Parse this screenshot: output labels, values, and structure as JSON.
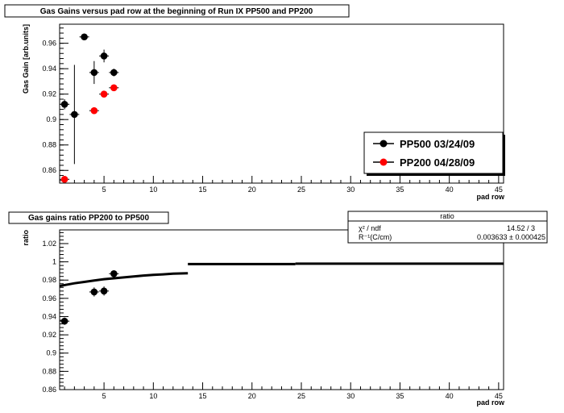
{
  "chart_data": [
    {
      "type": "scatter",
      "title": "Gas Gains versus pad row at the beginning of Run IX PP500 and PP200",
      "xlabel": "pad row",
      "ylabel": "Gas Gain [arb.units]",
      "xlim": [
        0.5,
        45.5
      ],
      "ylim": [
        0.85,
        0.975
      ],
      "xticks": [
        5,
        10,
        15,
        20,
        25,
        30,
        35,
        40,
        45
      ],
      "yticks": [
        0.86,
        0.88,
        0.9,
        0.92,
        0.94,
        0.96
      ],
      "ytick_labels": [
        "0.86",
        "0.88",
        "0.9",
        "0.92",
        "0.94",
        "0.96"
      ],
      "legend_position": "right",
      "series": [
        {
          "name": "PP500 03/24/09",
          "color": "#000000",
          "points": [
            {
              "x": 1,
              "y": 0.912,
              "yerr": 0.004
            },
            {
              "x": 2,
              "y": 0.904,
              "yerr": 0.039
            },
            {
              "x": 3,
              "y": 0.965,
              "yerr": 0.002
            },
            {
              "x": 4,
              "y": 0.937,
              "yerr": 0.009
            },
            {
              "x": 5,
              "y": 0.95,
              "yerr": 0.005
            },
            {
              "x": 6,
              "y": 0.937,
              "yerr": 0.003
            }
          ]
        },
        {
          "name": "PP200 04/28/09",
          "color": "#ff0000",
          "points": [
            {
              "x": 1,
              "y": 0.853,
              "yerr": 0.002
            },
            {
              "x": 4,
              "y": 0.907,
              "yerr": 0.002
            },
            {
              "x": 5,
              "y": 0.92,
              "yerr": 0.002
            },
            {
              "x": 6,
              "y": 0.925,
              "yerr": 0.002
            }
          ]
        }
      ]
    },
    {
      "type": "scatter",
      "title": "Gas gains ratio PP200 to PP500",
      "xlabel": "pad row",
      "ylabel": "ratio",
      "xlim": [
        0.5,
        45.5
      ],
      "ylim": [
        0.86,
        1.035
      ],
      "xticks": [
        5,
        10,
        15,
        20,
        25,
        30,
        35,
        40,
        45
      ],
      "yticks": [
        0.86,
        0.88,
        0.9,
        0.92,
        0.94,
        0.96,
        0.98,
        1,
        1.02
      ],
      "ytick_labels": [
        "0.86",
        "0.88",
        "0.9",
        "0.92",
        "0.94",
        "0.96",
        "0.98",
        "1",
        "1.02"
      ],
      "points": [
        {
          "x": 1,
          "y": 0.935,
          "yerr": 0.004
        },
        {
          "x": 4,
          "y": 0.967,
          "yerr": 0.005
        },
        {
          "x": 5,
          "y": 0.968,
          "yerr": 0.005
        },
        {
          "x": 6,
          "y": 0.987,
          "yerr": 0.003
        }
      ],
      "fit": {
        "name": "ratio",
        "chi2_label": "χ² / ndf",
        "chi2_value": "14.52 / 3",
        "param_label": "R⁻¹(C/cm)",
        "param_value": "0.003633 ± 0.000425",
        "curve": [
          [
            0.5,
            0.9735
          ],
          [
            1,
            0.9745
          ],
          [
            2,
            0.9765
          ],
          [
            3,
            0.978
          ],
          [
            4,
            0.9795
          ],
          [
            5,
            0.981
          ],
          [
            6,
            0.982
          ],
          [
            7,
            0.983
          ],
          [
            8,
            0.984
          ],
          [
            9,
            0.985
          ],
          [
            10,
            0.9857
          ],
          [
            11,
            0.9863
          ],
          [
            12,
            0.987
          ],
          [
            13.5,
            0.9875
          ]
        ],
        "segments": [
          {
            "x0": 13.5,
            "x1": 24.4,
            "y": 0.9975
          },
          {
            "x0": 24.4,
            "x1": 45.5,
            "y": 0.998
          }
        ]
      }
    }
  ]
}
